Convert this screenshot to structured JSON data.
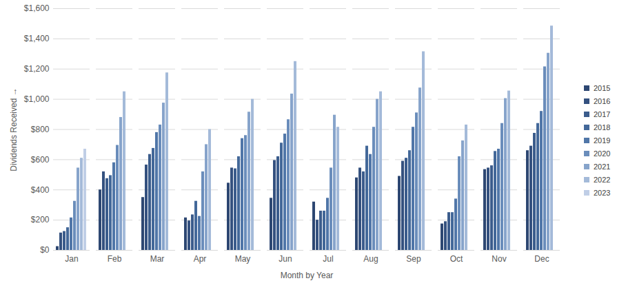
{
  "chart_data": {
    "type": "bar",
    "x_label": "Month by Year",
    "y_label": "Dividends Received",
    "categories": [
      "Jan",
      "Feb",
      "Mar",
      "Apr",
      "May",
      "Jun",
      "Jul",
      "Aug",
      "Sep",
      "Oct",
      "Nov",
      "Dec"
    ],
    "series": [
      {
        "name": "2015",
        "color": "#2d4772",
        "values": [
          25,
          400,
          350,
          215,
          445,
          345,
          320,
          480,
          490,
          175,
          535,
          660
        ]
      },
      {
        "name": "2016",
        "color": "#34517f",
        "values": [
          115,
          520,
          565,
          195,
          545,
          595,
          200,
          545,
          590,
          190,
          545,
          690
        ]
      },
      {
        "name": "2017",
        "color": "#3b5c8c",
        "values": [
          125,
          475,
          635,
          235,
          540,
          620,
          260,
          520,
          610,
          250,
          560,
          775
        ]
      },
      {
        "name": "2018",
        "color": "#436899",
        "values": [
          150,
          495,
          675,
          325,
          620,
          710,
          260,
          690,
          660,
          250,
          655,
          840
        ]
      },
      {
        "name": "2019",
        "color": "#5076a8",
        "values": [
          215,
          580,
          780,
          225,
          740,
          770,
          345,
          635,
          815,
          340,
          670,
          920
        ]
      },
      {
        "name": "2020",
        "color": "#6a8dbb",
        "values": [
          325,
          695,
          830,
          520,
          760,
          865,
          545,
          815,
          910,
          620,
          840,
          1215
        ]
      },
      {
        "name": "2021",
        "color": "#87a4cb",
        "values": [
          545,
          880,
          975,
          700,
          915,
          1035,
          895,
          1000,
          1075,
          725,
          1005,
          1305
        ]
      },
      {
        "name": "2022",
        "color": "#a4bad9",
        "values": [
          610,
          1050,
          1175,
          800,
          1000,
          1250,
          815,
          1050,
          1315,
          830,
          1055,
          1485
        ]
      },
      {
        "name": "2023",
        "color": "#c0cee6",
        "values": [
          670,
          null,
          null,
          null,
          null,
          null,
          null,
          null,
          null,
          null,
          null,
          null
        ]
      }
    ],
    "ylim": [
      0,
      1600
    ],
    "yticks": [
      {
        "value": 0,
        "label": "$0"
      },
      {
        "value": 200,
        "label": "$200"
      },
      {
        "value": 400,
        "label": "$400"
      },
      {
        "value": 600,
        "label": "$600"
      },
      {
        "value": 800,
        "label": "$800"
      },
      {
        "value": 1000,
        "label": "$1,000"
      },
      {
        "value": 1200,
        "label": "$1,200"
      },
      {
        "value": 1400,
        "label": "$1,400"
      },
      {
        "value": 1600,
        "label": "$1,600"
      }
    ],
    "grid": true,
    "legend": "right"
  }
}
